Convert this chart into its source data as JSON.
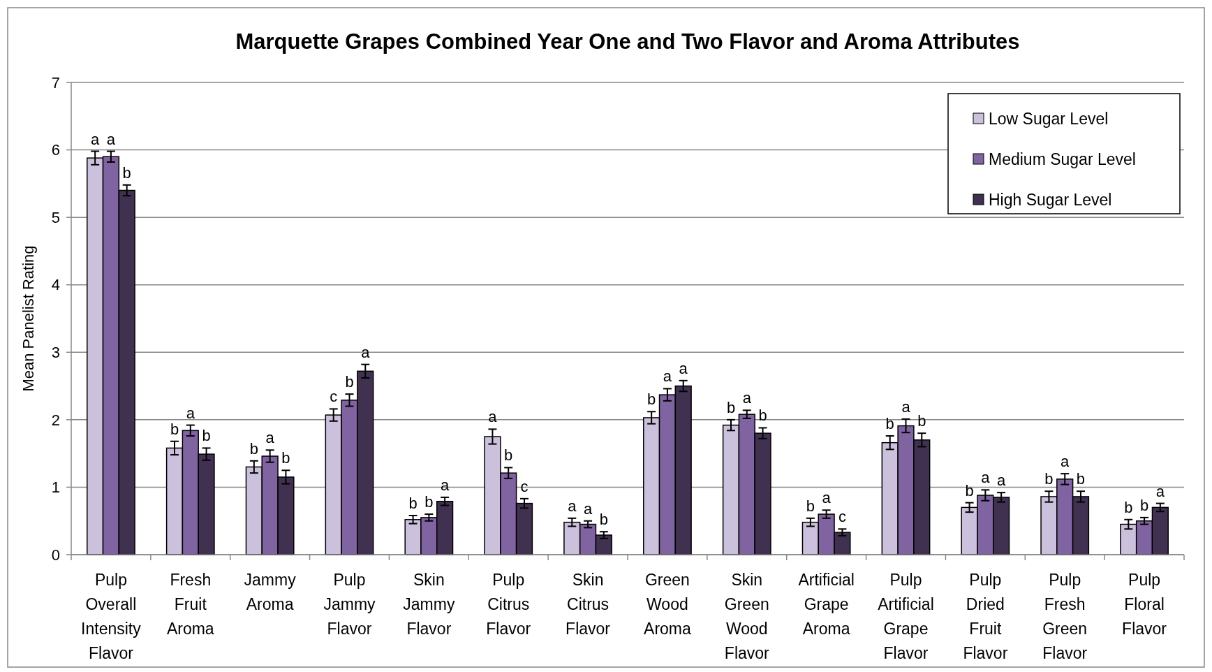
{
  "chart_data": {
    "type": "bar",
    "title": "Marquette Grapes Combined Year One and Two Flavor and Aroma  Attributes",
    "ylabel": "Mean Panelist Rating",
    "categories": [
      "Pulp Overall Intensity Flavor",
      "Fresh Fruit Aroma",
      "Jammy Aroma",
      "Pulp Jammy Flavor",
      "Skin Jammy Flavor",
      "Pulp Citrus Flavor",
      "Skin Citrus Flavor",
      "Green Wood Aroma",
      "Skin Green Wood Flavor",
      "Artificial Grape Aroma",
      "Pulp Artificial Grape Flavor",
      "Pulp Dried Fruit Flavor",
      "Pulp Fresh Green Flavor",
      "Pulp Floral Flavor"
    ],
    "series": [
      {
        "name": "Low Sugar Level",
        "color": "#ccc1dc",
        "values": [
          5.88,
          1.58,
          1.3,
          2.07,
          0.52,
          1.75,
          0.48,
          2.03,
          1.92,
          0.48,
          1.66,
          0.7,
          0.86,
          0.45
        ],
        "errors": [
          0.1,
          0.1,
          0.09,
          0.09,
          0.06,
          0.11,
          0.06,
          0.09,
          0.08,
          0.06,
          0.1,
          0.07,
          0.08,
          0.07
        ],
        "value_labels": [
          "a",
          "b",
          "b",
          "c",
          "b",
          "a",
          "a",
          "b",
          "b",
          "b",
          "b",
          "b",
          "b",
          "b"
        ]
      },
      {
        "name": "Medium Sugar Level",
        "color": "#8064a2",
        "values": [
          5.9,
          1.84,
          1.46,
          2.29,
          0.55,
          1.21,
          0.45,
          2.37,
          2.08,
          0.6,
          1.91,
          0.88,
          1.12,
          0.5
        ],
        "errors": [
          0.08,
          0.08,
          0.09,
          0.09,
          0.05,
          0.08,
          0.05,
          0.09,
          0.06,
          0.06,
          0.1,
          0.08,
          0.08,
          0.05
        ],
        "value_labels": [
          "a",
          "a",
          "a",
          "b",
          "b",
          "b",
          "a",
          "a",
          "a",
          "a",
          "a",
          "a",
          "a",
          "b"
        ]
      },
      {
        "name": "High Sugar Level",
        "color": "#403151",
        "values": [
          5.4,
          1.49,
          1.15,
          2.72,
          0.79,
          0.76,
          0.29,
          2.5,
          1.8,
          0.33,
          1.7,
          0.85,
          0.86,
          0.7
        ],
        "errors": [
          0.08,
          0.09,
          0.1,
          0.1,
          0.06,
          0.07,
          0.05,
          0.08,
          0.08,
          0.05,
          0.1,
          0.07,
          0.08,
          0.06
        ],
        "value_labels": [
          "b",
          "b",
          "b",
          "a",
          "a",
          "c",
          "b",
          "a",
          "b",
          "c",
          "b",
          "a",
          "b",
          "a"
        ]
      }
    ],
    "ylim": [
      0,
      7
    ],
    "yticks": [
      0,
      1,
      2,
      3,
      4,
      5,
      6,
      7
    ],
    "grid": "y",
    "legend": "top right"
  }
}
